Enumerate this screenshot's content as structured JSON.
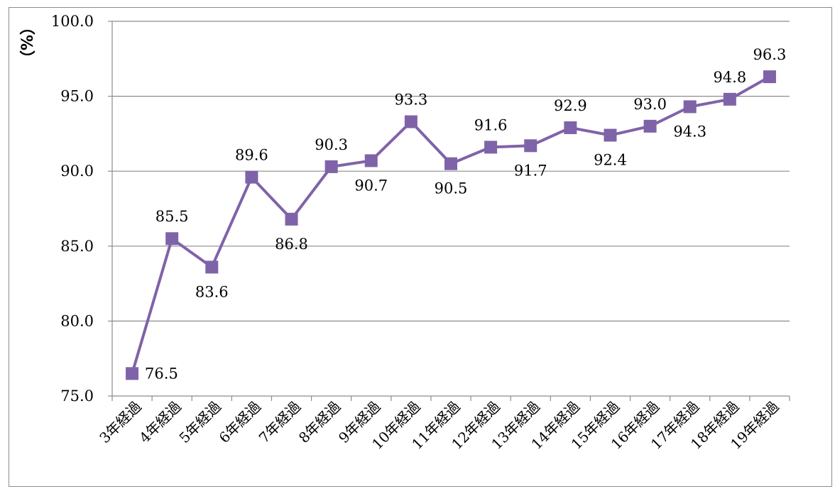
{
  "chart_data": {
    "type": "line",
    "ylabel": "（%）",
    "ylim": [
      75.0,
      100.0
    ],
    "yticks": [
      "75.0",
      "80.0",
      "85.0",
      "90.0",
      "95.0",
      "100.0"
    ],
    "ytick_values": [
      75,
      80,
      85,
      90,
      95,
      100
    ],
    "grid": true,
    "legend": "none",
    "line_color": "#7f63a8",
    "categories": [
      "3年経過",
      "4年経過",
      "5年経過",
      "6年経過",
      "7年経過",
      "8年経過",
      "9年経過",
      "10年経過",
      "11年経過",
      "12年経過",
      "13年経過",
      "14年経過",
      "15年経過",
      "16年経過",
      "17年経過",
      "18年経過",
      "19年経過"
    ],
    "series": [
      {
        "values": [
          76.5,
          85.5,
          83.6,
          89.6,
          86.8,
          90.3,
          90.7,
          93.3,
          90.5,
          91.6,
          91.7,
          92.9,
          92.4,
          93.0,
          94.3,
          94.8,
          96.3
        ],
        "labels": [
          "76.5",
          "85.5",
          "83.6",
          "89.6",
          "86.8",
          "90.3",
          "90.7",
          "93.3",
          "90.5",
          "91.6",
          "91.7",
          "92.9",
          "92.4",
          "93.0",
          "94.3",
          "94.8",
          "96.3"
        ],
        "label_positions": [
          "right",
          "above",
          "below",
          "above",
          "below",
          "above",
          "below",
          "above",
          "below",
          "above",
          "below",
          "above",
          "below",
          "above",
          "below",
          "above",
          "above"
        ]
      }
    ]
  }
}
